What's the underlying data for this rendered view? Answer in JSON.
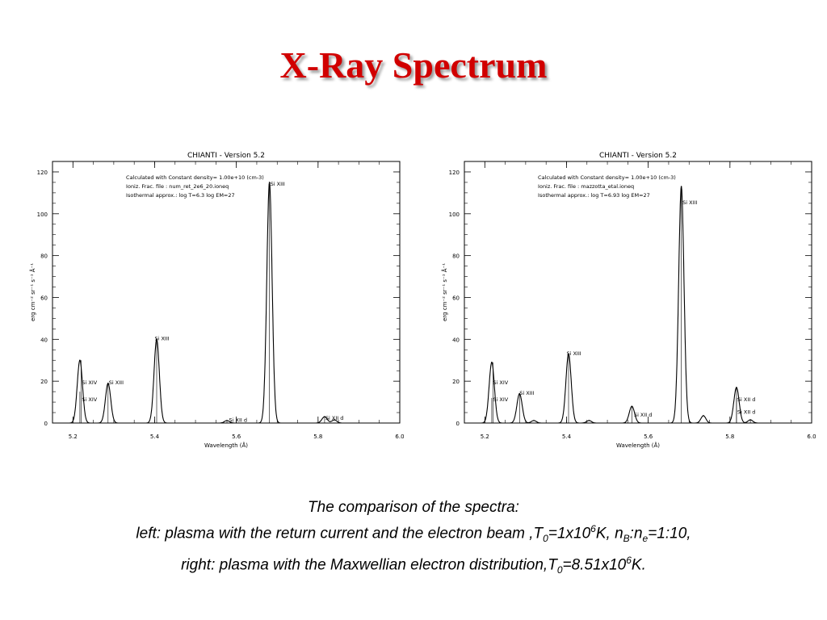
{
  "slide_title": "X-Ray Spectrum",
  "caption": {
    "line1": "The comparison of the spectra:",
    "line2": {
      "a": "left: plasma with the return current and the electron beam ,T",
      "sub0": "0",
      "b": "=1x10",
      "sup6": "6",
      "c": "K, n",
      "subB": "B",
      "d": ":n",
      "sube": "e",
      "e": "=1:10,"
    },
    "line3": {
      "a": "right: plasma with the Maxwellian electron distribution,T",
      "sub0": "0",
      "b": "=8.51x10",
      "sup6": "6",
      "c": "K."
    }
  },
  "chart_data": [
    {
      "type": "line",
      "title": "CHIANTI  -  Version 5.2",
      "xlabel": "Wavelength (Å)",
      "ylabel": "erg cm⁻² sr⁻¹ s⁻¹ Å⁻¹",
      "xlim": [
        5.15,
        6.0
      ],
      "ylim": [
        0,
        125
      ],
      "xticks": [
        5.2,
        5.4,
        5.6,
        5.8,
        6.0
      ],
      "xtick_labels": [
        "5.2",
        "5.4",
        "5.6",
        "5.8",
        "6.0"
      ],
      "yticks": [
        0,
        20,
        40,
        60,
        80,
        100,
        120
      ],
      "ytick_labels": [
        "0",
        "20",
        "40",
        "60",
        "80",
        "100",
        "120"
      ],
      "info_lines": [
        "Calculated with Constant density=  1.00e+10 (cm-3)",
        "Ioniz. Frac. file : num_ret_2e6_20.ioneq",
        "Isothermal approx.: log T=6.3 log EM=27"
      ],
      "peaks": [
        {
          "x": 5.217,
          "y": 30,
          "w": 0.0065
        },
        {
          "x": 5.286,
          "y": 19,
          "w": 0.0065
        },
        {
          "x": 5.405,
          "y": 40,
          "w": 0.0065
        },
        {
          "x": 5.577,
          "y": 1.2,
          "w": 0.006
        },
        {
          "x": 5.681,
          "y": 115,
          "w": 0.0065
        },
        {
          "x": 5.816,
          "y": 3,
          "w": 0.0065
        },
        {
          "x": 5.84,
          "y": 1.5,
          "w": 0.006
        }
      ],
      "line_labels": [
        {
          "x": 5.22,
          "y": 30,
          "text": "Si XIV",
          "tx": 5.222,
          "ty": 18.5
        },
        {
          "x": 5.217,
          "y": 15,
          "text": "Si XIV",
          "tx": 5.222,
          "ty": 10.5
        },
        {
          "x": 5.286,
          "y": 19,
          "text": "Si XIII",
          "tx": 5.288,
          "ty": 18.5
        },
        {
          "x": 5.405,
          "y": 40,
          "text": "Si XIII",
          "tx": 5.4,
          "ty": 39.5
        },
        {
          "x": 5.577,
          "y": 1.2,
          "text": "Si XII d",
          "tx": 5.582,
          "ty": 0.5
        },
        {
          "x": 5.681,
          "y": 115,
          "text": "Si XIII",
          "tx": 5.683,
          "ty": 113.5
        },
        {
          "x": 5.816,
          "y": 3,
          "text": "Si XII d",
          "tx": 5.818,
          "ty": 1.5
        }
      ]
    },
    {
      "type": "line",
      "title": "CHIANTI  -  Version 5.2",
      "xlabel": "Wavelength (Å)",
      "ylabel": "erg cm⁻² sr⁻¹ s⁻¹ Å⁻¹",
      "xlim": [
        5.15,
        6.0
      ],
      "ylim": [
        0,
        125
      ],
      "xticks": [
        5.2,
        5.4,
        5.6,
        5.8,
        6.0
      ],
      "xtick_labels": [
        "5.2",
        "5.4",
        "5.6",
        "5.8",
        "6.0"
      ],
      "yticks": [
        0,
        20,
        40,
        60,
        80,
        100,
        120
      ],
      "ytick_labels": [
        "0",
        "20",
        "40",
        "60",
        "80",
        "100",
        "120"
      ],
      "info_lines": [
        "Calculated with Constant density=  1.00e+10 (cm-3)",
        "Ioniz. Frac. file : mazzotta_etal.ioneq",
        "Isothermal approx.: log T=6.93 log EM=27"
      ],
      "peaks": [
        {
          "x": 5.217,
          "y": 29,
          "w": 0.0065
        },
        {
          "x": 5.285,
          "y": 14,
          "w": 0.0065
        },
        {
          "x": 5.32,
          "y": 1.2,
          "w": 0.006
        },
        {
          "x": 5.405,
          "y": 33,
          "w": 0.0065
        },
        {
          "x": 5.455,
          "y": 1.2,
          "w": 0.006
        },
        {
          "x": 5.56,
          "y": 8,
          "w": 0.0065
        },
        {
          "x": 5.681,
          "y": 113,
          "w": 0.0065
        },
        {
          "x": 5.735,
          "y": 3.5,
          "w": 0.006
        },
        {
          "x": 5.816,
          "y": 17,
          "w": 0.0065
        },
        {
          "x": 5.85,
          "y": 1.5,
          "w": 0.006
        }
      ],
      "line_labels": [
        {
          "x": 5.22,
          "y": 29,
          "text": "Si XIV",
          "tx": 5.22,
          "ty": 18.5
        },
        {
          "x": 5.217,
          "y": 12,
          "text": "Si XIV",
          "tx": 5.22,
          "ty": 10.5
        },
        {
          "x": 5.285,
          "y": 14,
          "text": "Si XIII",
          "tx": 5.285,
          "ty": 13.5
        },
        {
          "x": 5.405,
          "y": 33,
          "text": "Si XIII",
          "tx": 5.4,
          "ty": 32.5
        },
        {
          "x": 5.56,
          "y": 8,
          "text": "Si XII d",
          "tx": 5.565,
          "ty": 3
        },
        {
          "x": 5.681,
          "y": 113,
          "text": "Si XIII",
          "tx": 5.684,
          "ty": 104.5
        },
        {
          "x": 5.816,
          "y": 17,
          "text": "Si XII d",
          "tx": 5.818,
          "ty": 10.5
        },
        {
          "x": 5.816,
          "y": 12,
          "text": "Si XII d",
          "tx": 5.818,
          "ty": 4.5
        }
      ]
    }
  ]
}
